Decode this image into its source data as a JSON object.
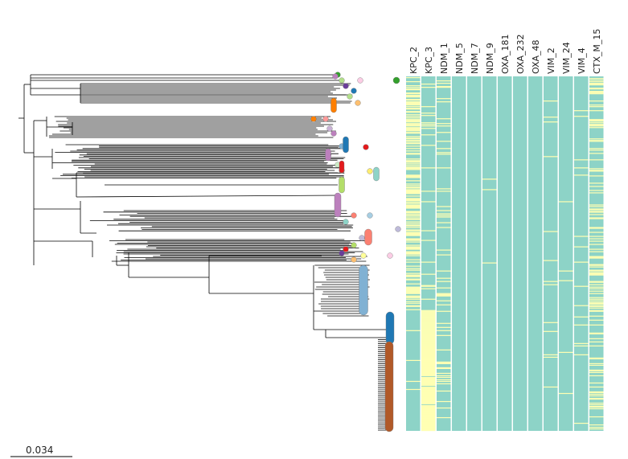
{
  "figure": {
    "type": "phylogenetic-tree-with-gene-heatmap",
    "scale_bar_label": "0.034",
    "gene_columns": [
      "KPC_2",
      "KPC_3",
      "NDM_1",
      "NDM_5",
      "NDM_7",
      "NDM_9",
      "OXA_181",
      "OXA_232",
      "OXA_48",
      "VIM_2",
      "VIM_24",
      "VIM_4",
      "CTX_M_15"
    ],
    "colors": {
      "absent": "#8dd3c7",
      "present": "#ffffb3",
      "branch": "#000000",
      "tip_palette": [
        "#33a02c",
        "#b2df8a",
        "#fccde5",
        "#6a3d9a",
        "#1f78b4",
        "#fdbf6f",
        "#ff7f00",
        "#fb9a99",
        "#cab2d6",
        "#bc80bd",
        "#80b1d3",
        "#e31a1c",
        "#ccebc5",
        "#b15928",
        "#ffed6f",
        "#d9d9d9",
        "#fb8072",
        "#8dd3c7",
        "#a6cee3",
        "#bebada",
        "#b3de69",
        "#ffff99"
      ]
    },
    "heatmap_presence": {
      "KPC_2": {
        "present_fraction": 0.45
      },
      "KPC_3": {
        "present_fraction": 0.3
      },
      "NDM_1": {
        "present_fraction": 0.1
      },
      "NDM_5": {
        "present_fraction": 0.0
      },
      "NDM_7": {
        "present_fraction": 0.0
      },
      "NDM_9": {
        "present_fraction": 0.01
      },
      "OXA_181": {
        "present_fraction": 0.0
      },
      "OXA_232": {
        "present_fraction": 0.0
      },
      "OXA_48": {
        "present_fraction": 0.0
      },
      "VIM_2": {
        "present_fraction": 0.02
      },
      "VIM_24": {
        "present_fraction": 0.01
      },
      "VIM_4": {
        "present_fraction": 0.03
      },
      "CTX_M_15": {
        "present_fraction": 0.25
      }
    }
  }
}
